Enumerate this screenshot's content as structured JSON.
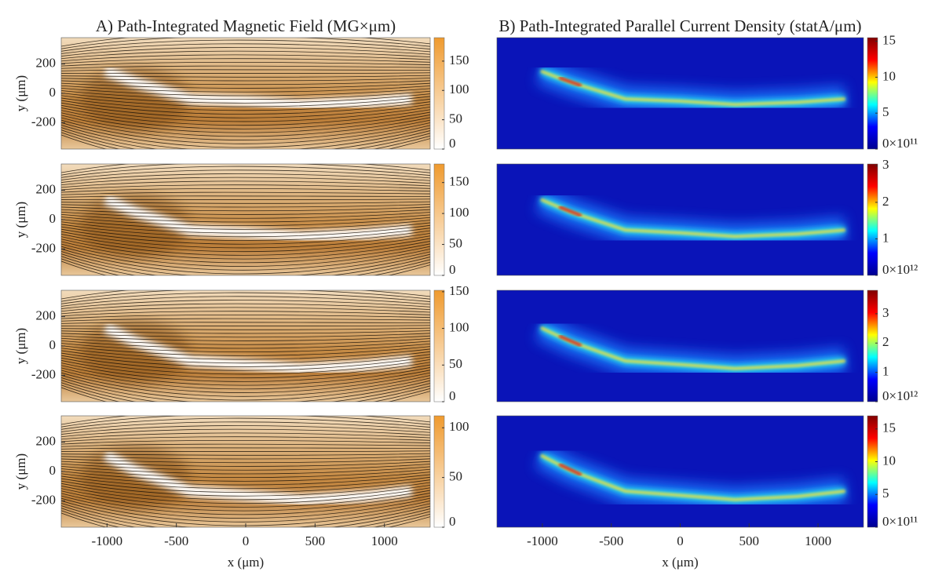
{
  "chart_data": [
    {
      "type": "heatmap",
      "title": "A) Path-Integrated Magnetic Field (MG×μm)",
      "ylabel": "y (μm)",
      "xlim": [
        -1330,
        1330
      ],
      "ylim": [
        -380,
        380
      ],
      "yticks": [
        -200,
        0,
        200
      ],
      "clim": [
        0,
        190
      ],
      "cticks": [
        0,
        50,
        100,
        150
      ],
      "colormap": [
        "#ffffff",
        "#ef9a2e"
      ]
    },
    {
      "type": "heatmap",
      "ylabel": "y (μm)",
      "xlim": [
        -1330,
        1330
      ],
      "ylim": [
        -380,
        380
      ],
      "yticks": [
        -200,
        0,
        200
      ],
      "clim": [
        0,
        180
      ],
      "cticks": [
        0,
        50,
        100,
        150
      ],
      "colormap": [
        "#ffffff",
        "#ef9a2e"
      ]
    },
    {
      "type": "heatmap",
      "ylabel": "y (μm)",
      "xlim": [
        -1330,
        1330
      ],
      "ylim": [
        -380,
        380
      ],
      "yticks": [
        -200,
        0,
        200
      ],
      "clim": [
        0,
        152
      ],
      "cticks": [
        0,
        50,
        100,
        150
      ],
      "colormap": [
        "#ffffff",
        "#ef9a2e"
      ]
    },
    {
      "type": "heatmap",
      "ylabel": "y (μm)",
      "xlabel": "x (μm)",
      "xlim": [
        -1330,
        1330
      ],
      "ylim": [
        -380,
        380
      ],
      "xticks": [
        -1000,
        -500,
        0,
        500,
        1000
      ],
      "yticks": [
        -200,
        0,
        200
      ],
      "clim": [
        0,
        112
      ],
      "cticks": [
        0,
        50,
        100
      ],
      "colormap": [
        "#ffffff",
        "#ef9a2e"
      ]
    },
    {
      "type": "heatmap",
      "title": "B) Path-Integrated Parallel Current Density (statA/μm)",
      "xlim": [
        -1330,
        1330
      ],
      "ylim": [
        -380,
        380
      ],
      "clim": [
        0,
        15.5
      ],
      "cticks": [
        {
          "value": 0,
          "label": "0×10¹¹"
        },
        5,
        10,
        15
      ],
      "colormap": [
        "#00008f",
        "#0000ff",
        "#00ffff",
        "#ffff00",
        "#ff0000",
        "#800000"
      ]
    },
    {
      "type": "heatmap",
      "xlim": [
        -1330,
        1330
      ],
      "ylim": [
        -380,
        380
      ],
      "clim": [
        0,
        3.05
      ],
      "cticks": [
        {
          "value": 0,
          "label": "0×10¹²"
        },
        1,
        2,
        3
      ],
      "colormap": [
        "#00008f",
        "#0000ff",
        "#00ffff",
        "#ffff00",
        "#ff0000",
        "#800000"
      ]
    },
    {
      "type": "heatmap",
      "xlim": [
        -1330,
        1330
      ],
      "ylim": [
        -380,
        380
      ],
      "clim": [
        0,
        3.8
      ],
      "cticks": [
        {
          "value": 0,
          "label": "0×10¹²"
        },
        1,
        2,
        3
      ],
      "colormap": [
        "#00008f",
        "#0000ff",
        "#00ffff",
        "#ffff00",
        "#ff0000",
        "#800000"
      ]
    },
    {
      "type": "heatmap",
      "xlabel": "x (μm)",
      "xlim": [
        -1330,
        1330
      ],
      "ylim": [
        -380,
        380
      ],
      "xticks": [
        -1000,
        -500,
        0,
        500,
        1000
      ],
      "clim": [
        0,
        17
      ],
      "cticks": [
        {
          "value": 0,
          "label": "0×10¹¹"
        },
        5,
        10,
        15
      ],
      "colormap": [
        "#00008f",
        "#0000ff",
        "#00ffff",
        "#ffff00",
        "#ff0000",
        "#800000"
      ]
    }
  ]
}
